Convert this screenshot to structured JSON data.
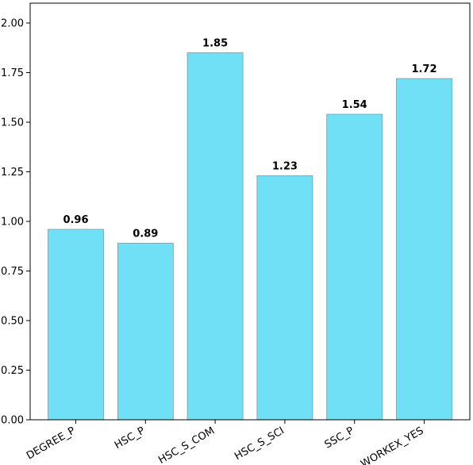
{
  "chart_data": {
    "type": "bar",
    "title": "",
    "xlabel": "",
    "ylabel": "",
    "categories": [
      "DEGREE_P",
      "HSC_P",
      "HSC_S_COM",
      "HSC_S_SCI",
      "SSC_P",
      "WORKEX_YES"
    ],
    "values": [
      0.96,
      0.89,
      1.85,
      1.23,
      1.54,
      1.72
    ],
    "data_labels": [
      "0.96",
      "0.89",
      "1.85",
      "1.23",
      "1.54",
      "1.72"
    ],
    "ylim": [
      0,
      2.1
    ],
    "yticks": [
      0.0,
      0.25,
      0.5,
      0.75,
      1.0,
      1.25,
      1.5,
      1.75,
      2.0
    ],
    "ytick_labels": [
      "0.00",
      "0.25",
      "0.50",
      "0.75",
      "1.00",
      "1.25",
      "1.50",
      "1.75",
      "2.00"
    ],
    "grid": false,
    "legend": "none",
    "colors": {
      "bar": "#6fe0f5",
      "bar_edge": "#7a9aa3",
      "axis": "#000000"
    }
  }
}
